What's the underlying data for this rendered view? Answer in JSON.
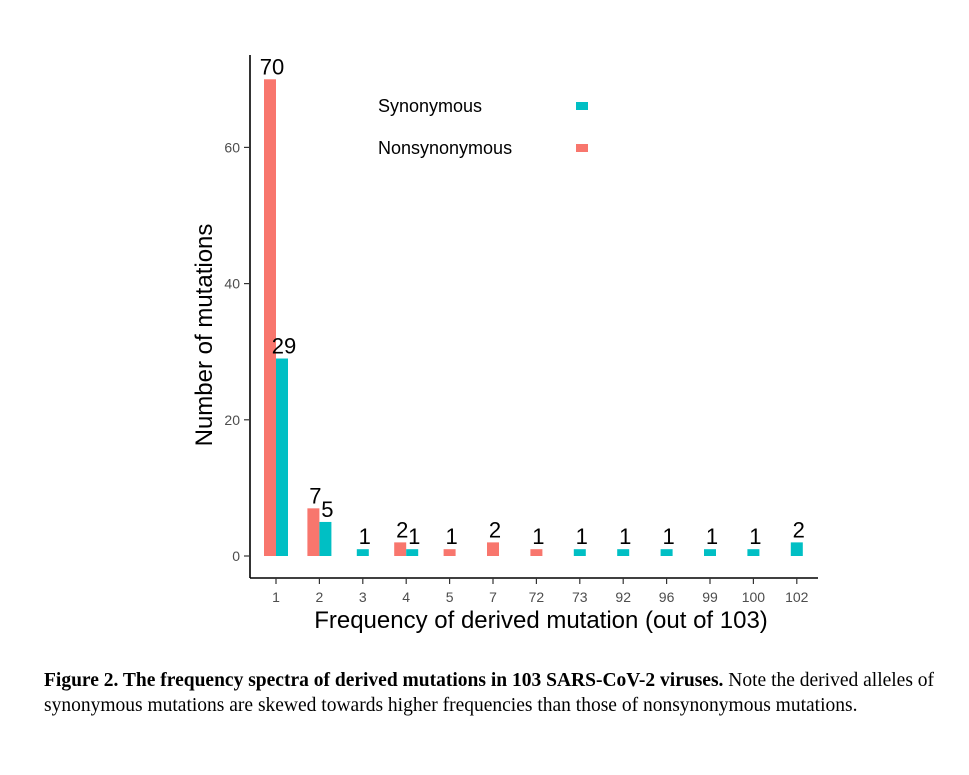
{
  "chart_data": {
    "type": "bar",
    "title": "",
    "xlabel": "Frequency of derived mutation (out of 103)",
    "ylabel": "Number of mutations",
    "categories": [
      "1",
      "2",
      "3",
      "4",
      "5",
      "7",
      "72",
      "73",
      "92",
      "96",
      "99",
      "100",
      "102"
    ],
    "series": [
      {
        "name": "Nonsynonymous",
        "color": "#F8766D",
        "values": [
          70,
          7,
          null,
          2,
          1,
          2,
          1,
          null,
          null,
          null,
          null,
          null,
          null
        ]
      },
      {
        "name": "Synonymous",
        "color": "#00BFC4",
        "values": [
          29,
          5,
          1,
          1,
          null,
          null,
          null,
          1,
          1,
          1,
          1,
          1,
          2
        ]
      }
    ],
    "yticks": [
      0,
      20,
      40,
      60
    ],
    "ylim": [
      0,
      73
    ],
    "legend_order": [
      "Synonymous",
      "Nonsynonymous"
    ],
    "legend_position": "top-center inside plot",
    "grid": false,
    "data_labels": true
  },
  "caption": {
    "bold": "Figure 2. The frequency spectra of derived mutations in 103 SARS-CoV-2 viruses.",
    "text": " Note the derived alleles of synonymous mutations are skewed towards higher frequencies than those of nonsynonymous mutations."
  }
}
